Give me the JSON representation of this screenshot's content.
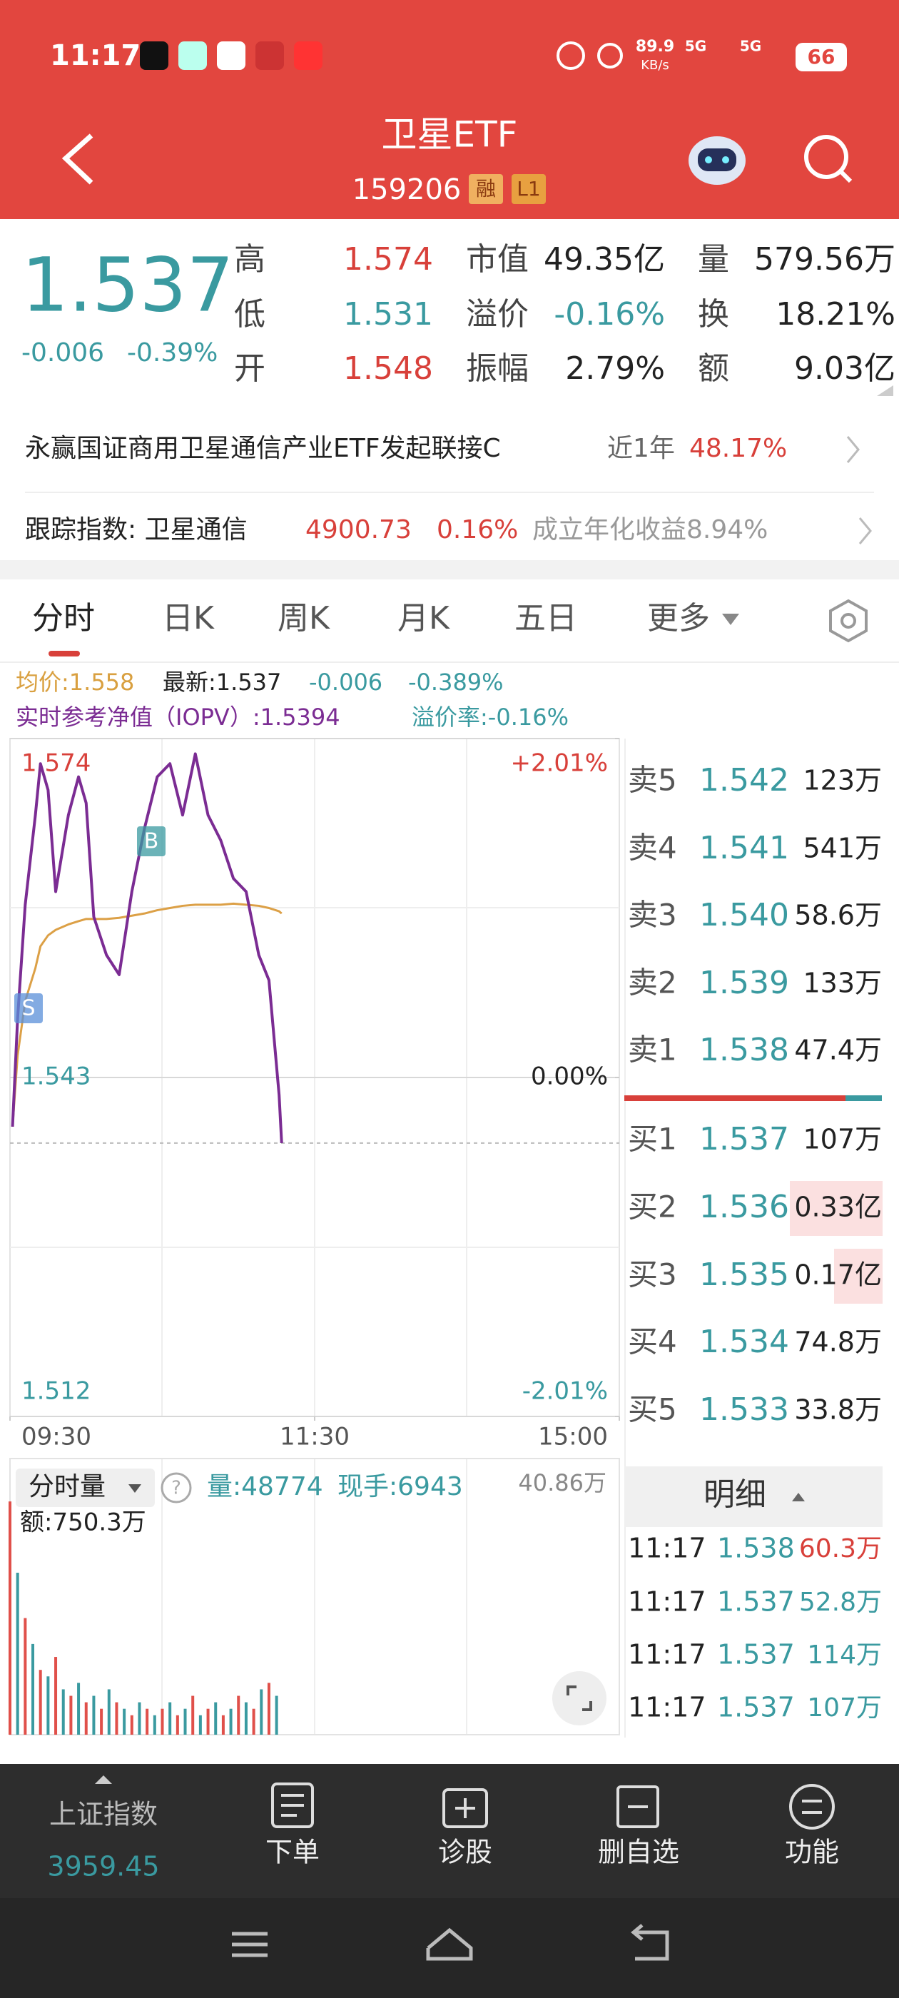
{
  "status_bar": {
    "time": "11:17",
    "net_speed": "89.9",
    "net_unit": "KB/s",
    "network": [
      "5G",
      "5G"
    ],
    "battery": "66"
  },
  "header": {
    "title": "卫星ETF",
    "code": "159206",
    "badges": [
      "融",
      "L1"
    ]
  },
  "quote": {
    "price": "1.537",
    "change": "-0.006",
    "change_pct": "-0.39%",
    "stats": [
      [
        {
          "label": "高",
          "value": "1.574"
        },
        {
          "label": "市值",
          "value": "49.35亿"
        },
        {
          "label": "量",
          "value": "579.56万"
        }
      ],
      [
        {
          "label": "低",
          "value": "1.531"
        },
        {
          "label": "溢价",
          "value": "-0.16%"
        },
        {
          "label": "换",
          "value": "18.21%"
        }
      ],
      [
        {
          "label": "开",
          "value": "1.548"
        },
        {
          "label": "振幅",
          "value": "2.79%"
        },
        {
          "label": "额",
          "value": "9.03亿"
        }
      ]
    ]
  },
  "fund_link": {
    "name": "永赢国证商用卫星通信产业ETF发起联接C",
    "period": "近1年",
    "return": "48.17%"
  },
  "index_row": {
    "label": "跟踪指数: 卫星通信",
    "value": "4900.73",
    "change": "0.16%",
    "annualized": "成立年化收益8.94%"
  },
  "tabs": [
    "分时",
    "日K",
    "周K",
    "月K",
    "五日",
    "更多"
  ],
  "intraday_info": {
    "avg": "均价:1.558",
    "latest": "最新:1.537",
    "change": "-0.006",
    "change_pct": "-0.389%",
    "iopv": "实时参考净值（IOPV）:1.5394",
    "premium": "溢价率:-0.16%"
  },
  "markers": [
    "S",
    "B"
  ],
  "chart_data": [
    {
      "type": "line",
      "x": [
        1,
        3,
        6,
        10,
        12,
        15,
        18,
        23,
        27,
        30,
        33,
        38,
        43,
        48,
        53,
        58,
        63,
        68,
        73,
        78,
        83,
        88,
        93,
        98,
        102,
        106,
        107
      ],
      "xlim": [
        0,
        240
      ],
      "xticks": [
        {
          "value": 0,
          "label": "09:30"
        },
        {
          "value": 120,
          "label": "11:30"
        },
        {
          "value": 240,
          "label": "15:00"
        }
      ],
      "ylim": [
        1.512,
        1.574
      ],
      "yticks": [
        1.512,
        1.543,
        1.574
      ],
      "y2lim": [
        -2.01,
        2.01
      ],
      "y2ticks": [
        {
          "value": 2.01,
          "label": "+2.01%"
        },
        {
          "value": 0,
          "label": "0.00%"
        },
        {
          "value": -2.01,
          "label": "-2.01%"
        }
      ],
      "series": [
        {
          "color": "#7b2c93",
          "values": [
            1.5385,
            1.5484,
            1.5588,
            1.567,
            1.5717,
            1.5693,
            1.56,
            1.567,
            1.5705,
            1.5681,
            1.5577,
            1.5542,
            1.5524,
            1.56,
            1.5658,
            1.5705,
            1.5717,
            1.567,
            1.5726,
            1.567,
            1.5647,
            1.5612,
            1.56,
            1.5542,
            1.5519,
            1.5414,
            1.537
          ]
        },
        {
          "color": "#dca046",
          "values": [
            1.5385,
            1.545,
            1.55,
            1.553,
            1.555,
            1.556,
            1.5565,
            1.557,
            1.5573,
            1.5575,
            1.5575,
            1.5575,
            1.5576,
            1.5578,
            1.558,
            1.5583,
            1.5585,
            1.5587,
            1.5588,
            1.5588,
            1.5588,
            1.5589,
            1.5588,
            1.5587,
            1.5585,
            1.5582,
            1.558
          ]
        }
      ]
    },
    {
      "type": "bar",
      "x": [
        0,
        3,
        6,
        9,
        12,
        15,
        18,
        21,
        24,
        27,
        30,
        33,
        36,
        39,
        42,
        45,
        48,
        51,
        54,
        57,
        60,
        63,
        66,
        69,
        72,
        75,
        78,
        81,
        84,
        87,
        90,
        93,
        96,
        99,
        102,
        105
      ],
      "xlim": [
        0,
        240
      ],
      "ylim": [
        0,
        40.86
      ],
      "yticks": [
        {
          "value": 40.86,
          "label": "40.86万"
        }
      ],
      "colors": [
        "#e0504a",
        "#3a9aa0"
      ],
      "values": [
        36,
        25,
        18,
        14,
        10,
        9,
        12,
        7,
        6,
        8,
        5,
        6,
        4,
        7,
        5,
        4,
        3,
        5,
        4,
        3,
        4,
        5,
        3,
        4,
        6,
        3,
        4,
        5,
        3,
        4,
        6,
        5,
        4,
        7,
        8,
        6
      ]
    }
  ],
  "volume_info": {
    "selector": "分时量",
    "help": "?",
    "volume": "量:48774",
    "current": "现手:6943",
    "amount": "额:750.3万"
  },
  "order_book": {
    "sell": [
      {
        "label": "卖5",
        "price": "1.542",
        "volume": "123万"
      },
      {
        "label": "卖4",
        "price": "1.541",
        "volume": "541万"
      },
      {
        "label": "卖3",
        "price": "1.540",
        "volume": "58.6万"
      },
      {
        "label": "卖2",
        "price": "1.539",
        "volume": "133万"
      },
      {
        "label": "卖1",
        "price": "1.538",
        "volume": "47.4万"
      }
    ],
    "buy": [
      {
        "label": "买1",
        "price": "1.537",
        "volume": "107万"
      },
      {
        "label": "买2",
        "price": "1.536",
        "volume": "0.33亿"
      },
      {
        "label": "买3",
        "price": "1.535",
        "volume": "0.17亿"
      },
      {
        "label": "买4",
        "price": "1.534",
        "volume": "74.8万"
      },
      {
        "label": "买5",
        "price": "1.533",
        "volume": "33.8万"
      }
    ]
  },
  "trade_detail": {
    "title": "明细",
    "rows": [
      {
        "time": "11:17",
        "price": "1.538",
        "volume": "60.3万"
      },
      {
        "time": "11:17",
        "price": "1.537",
        "volume": "52.8万"
      },
      {
        "time": "11:17",
        "price": "1.537",
        "volume": "114万"
      },
      {
        "time": "11:17",
        "price": "1.537",
        "volume": "107万"
      }
    ]
  },
  "bottom_nav": {
    "index_name": "上证指数",
    "index_value": "3959.45",
    "items": [
      "下单",
      "诊股",
      "删自选",
      "功能"
    ]
  }
}
